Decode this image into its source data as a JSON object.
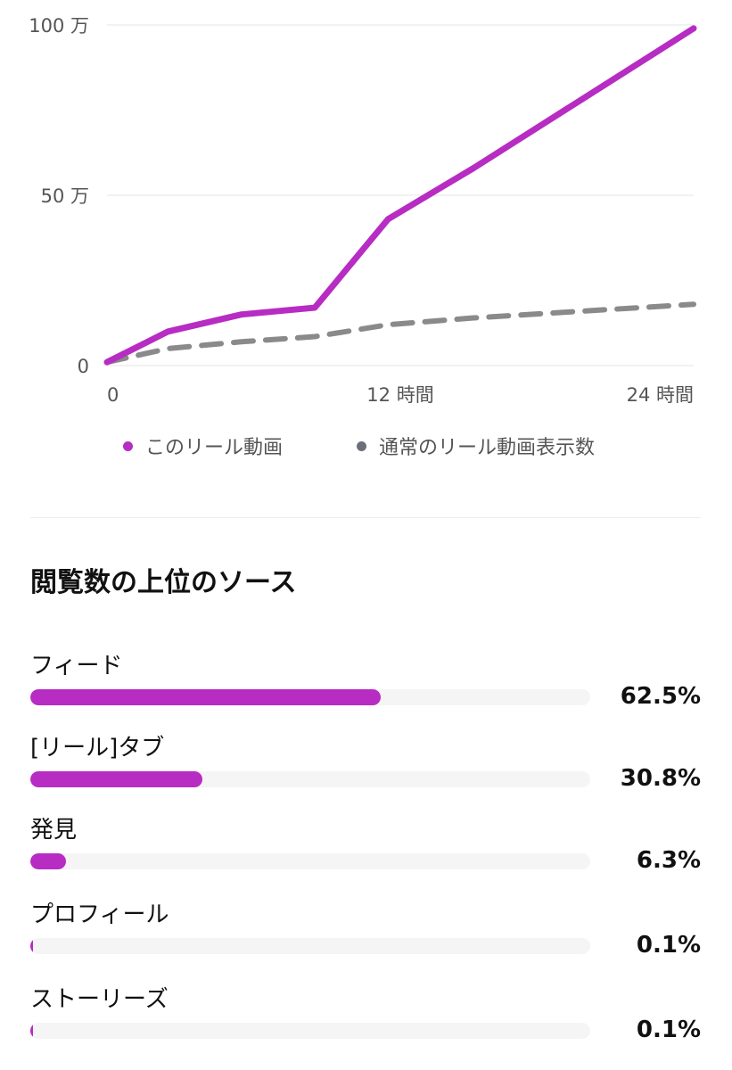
{
  "colors": {
    "accent": "#b72cc3",
    "comparison": "#8a8a8a",
    "legend_dot_gray": "#6c6f77",
    "gridline": "#e6e6e6",
    "track": "#f5f5f5"
  },
  "chart_data": {
    "type": "line",
    "x_tick_labels": [
      "0",
      "12 時間",
      "24 時間"
    ],
    "y_tick_labels": [
      "100 万",
      "50 万",
      "0"
    ],
    "xlim": [
      0,
      24
    ],
    "ylim": [
      0,
      100
    ],
    "y_unit": "万",
    "x_unit": "時間",
    "grid": true,
    "legend_placement": "bottom",
    "series": [
      {
        "name": "このリール動画",
        "color": "#b72cc3",
        "style": "solid",
        "x": [
          0,
          2.5,
          5.5,
          8.5,
          11.5,
          15,
          24
        ],
        "y": [
          1,
          10,
          15,
          17,
          43,
          58,
          99
        ]
      },
      {
        "name": "通常のリール動画表示数",
        "color": "#8a8a8a",
        "style": "dashed",
        "x": [
          0,
          2.5,
          5.5,
          8.5,
          11.5,
          15,
          24
        ],
        "y": [
          1,
          5,
          7,
          8.5,
          12,
          14,
          18
        ]
      }
    ]
  },
  "legend": {
    "items": [
      {
        "label": "このリール動画",
        "color": "#b72cc3"
      },
      {
        "label": "通常のリール動画表示数",
        "color": "#6c6f77"
      }
    ]
  },
  "sources_section": {
    "title": "閲覧数の上位のソース",
    "items": [
      {
        "label": "フィード",
        "percent_text": "62.5%",
        "value": 62.5
      },
      {
        "label": "[リール]タブ",
        "percent_text": "30.8%",
        "value": 30.8
      },
      {
        "label": "発見",
        "percent_text": "6.3%",
        "value": 6.3
      },
      {
        "label": "プロフィール",
        "percent_text": "0.1%",
        "value": 0.1
      },
      {
        "label": "ストーリーズ",
        "percent_text": "0.1%",
        "value": 0.1
      }
    ]
  }
}
